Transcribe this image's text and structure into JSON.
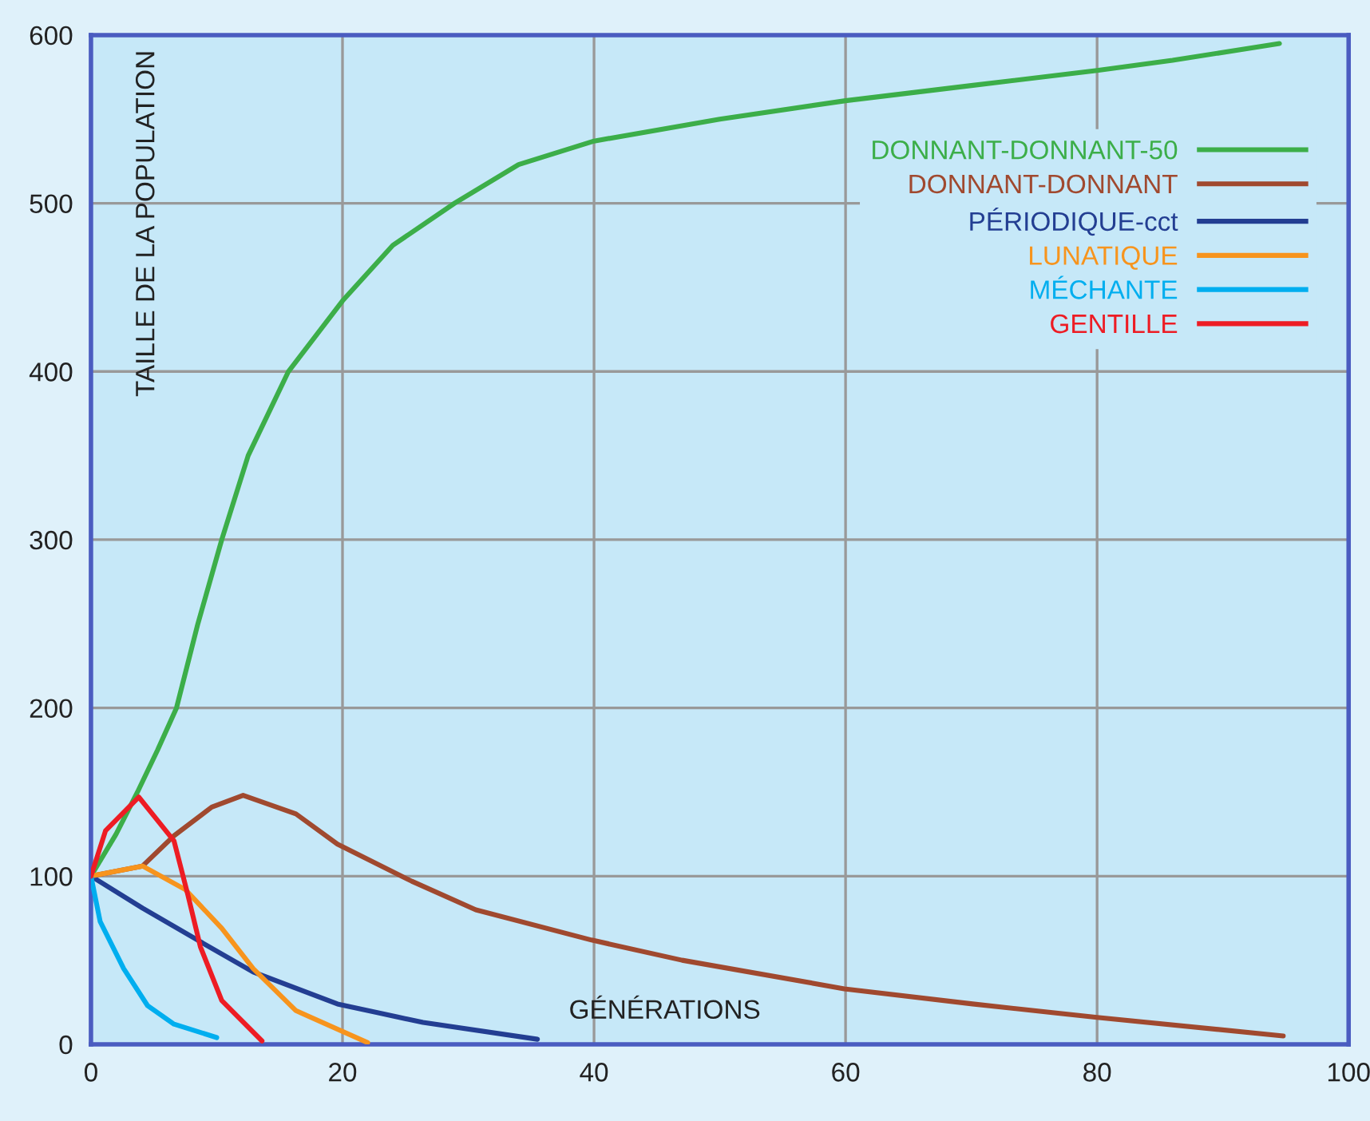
{
  "chart_data": {
    "type": "line",
    "xlabel": "GÉNÉRATIONS",
    "ylabel": "TAILLE DE LA POPULATION",
    "xlim": [
      0,
      100
    ],
    "ylim": [
      0,
      600
    ],
    "xticks": [
      0,
      20,
      40,
      60,
      80,
      100
    ],
    "yticks": [
      0,
      100,
      200,
      300,
      400,
      500,
      600
    ],
    "grid": true,
    "legend": "top right",
    "line_style": "solid",
    "series": [
      {
        "name": "DONNANT-DONNANT-50",
        "color": "#3cae49",
        "x": [
          0,
          2,
          3.7,
          5.3,
          6.8,
          8.5,
          10.4,
          12.5,
          15.7,
          20,
          24,
          28.9,
          34,
          40,
          50,
          60,
          70,
          80,
          86,
          94.5
        ],
        "values": [
          100,
          125,
          150,
          175,
          200,
          250,
          300,
          350,
          400,
          442,
          475,
          500,
          523,
          537,
          550,
          561,
          570,
          579,
          585,
          595
        ]
      },
      {
        "name": "DONNANT-DONNANT",
        "color": "#a0492f",
        "x": [
          0,
          4.1,
          6.6,
          9.6,
          12.1,
          16.3,
          19.6,
          25.5,
          30.6,
          39.8,
          47,
          59.9,
          70.1,
          80,
          94.8
        ],
        "values": [
          100,
          106,
          124,
          141,
          148,
          137,
          119,
          97,
          80,
          62,
          50,
          33,
          24,
          16,
          5
        ]
      },
      {
        "name": "PÉRIODIQUE-cct",
        "color": "#233e92",
        "x": [
          0,
          4.1,
          8.7,
          12.9,
          19.6,
          26.4,
          35.5
        ],
        "values": [
          100,
          81,
          61,
          43,
          24,
          13,
          3
        ]
      },
      {
        "name": "LUNATIQUE",
        "color": "#f7941d",
        "x": [
          0,
          4.1,
          7.5,
          10.4,
          12.9,
          16.3,
          22.0
        ],
        "values": [
          100,
          106,
          92,
          69,
          45,
          20,
          1
        ]
      },
      {
        "name": "MÉCHANTE",
        "color": "#00aeef",
        "x": [
          0,
          0.73,
          2.6,
          4.5,
          6.6,
          10.0
        ],
        "values": [
          100,
          73,
          45,
          23,
          12,
          4
        ]
      },
      {
        "name": "GENTILLE",
        "color": "#ed1c24",
        "x": [
          0,
          1.16,
          3.8,
          6.6,
          7.7,
          8.7,
          10.4,
          13.6
        ],
        "values": [
          100,
          127,
          147,
          121,
          89,
          58,
          26,
          2
        ]
      }
    ]
  }
}
